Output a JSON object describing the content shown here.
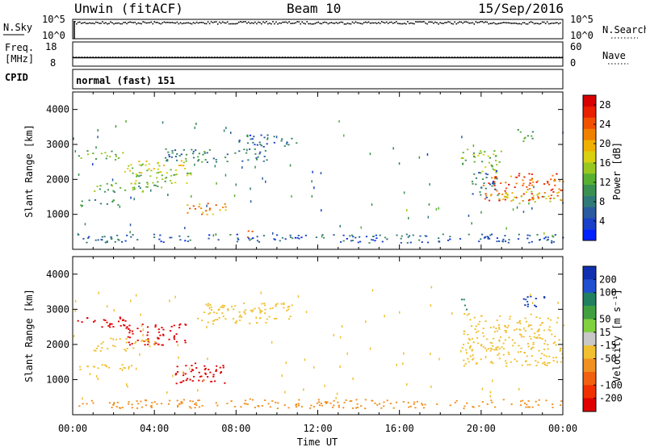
{
  "header": {
    "title": "Unwin (fitACF)",
    "beam": "Beam 10",
    "date": "15/Sep/2016"
  },
  "top_panels": {
    "nsky_label": "N.Sky",
    "nsearch_label": "N.Search",
    "nsky_ticks": [
      "10^5",
      "10^0"
    ],
    "nsearch_ticks": [
      "10^5",
      "10^0"
    ],
    "freq_label_1": "Freq.",
    "freq_label_2": "[MHz]",
    "freq_ticks": [
      "18",
      "8"
    ],
    "nave_label": "Nave",
    "nave_ticks": [
      "60",
      "0"
    ],
    "cpid_label": "CPID",
    "cpid_value": "normal (fast) 151",
    "freq_level_mhz": 11.5,
    "nave_level": 22
  },
  "chart_data": [
    {
      "type": "heatmap",
      "name": "power",
      "ylabel": "Slant Range [km]",
      "xlabel": "",
      "ylim": [
        0,
        4500
      ],
      "yticks": [
        "1000",
        "2000",
        "3000",
        "4000"
      ],
      "xlim_hours": [
        0,
        24
      ],
      "colorbar": {
        "label": "Power [dB]",
        "ticks": [
          "4",
          "8",
          "12",
          "16",
          "20",
          "24",
          "28"
        ],
        "range": [
          0,
          30
        ],
        "colors": [
          "#0020ff",
          "#1a3fc8",
          "#2a5aa0",
          "#2f7a78",
          "#3a9050",
          "#58b030",
          "#98c820",
          "#d8d010",
          "#f0b000",
          "#f08000",
          "#f05000",
          "#e82000",
          "#d80000"
        ]
      },
      "regions": [
        {
          "t0": 0.2,
          "t1": 2.5,
          "r0": 2550,
          "r1": 2850,
          "v": 13
        },
        {
          "t0": 0.3,
          "t1": 2.2,
          "r0": 1250,
          "r1": 1450,
          "v": 10
        },
        {
          "t0": 1.0,
          "t1": 4.5,
          "r0": 1650,
          "r1": 1950,
          "v": 12
        },
        {
          "t0": 2.5,
          "t1": 5.5,
          "r0": 2150,
          "r1": 2550,
          "v": 17
        },
        {
          "t0": 3.0,
          "t1": 6.0,
          "r0": 1900,
          "r1": 2250,
          "v": 14
        },
        {
          "t0": 5.5,
          "t1": 7.5,
          "r0": 1000,
          "r1": 1350,
          "v": 21
        },
        {
          "t0": 4.5,
          "t1": 9.5,
          "r0": 2500,
          "r1": 2900,
          "v": 8
        },
        {
          "t0": 8.0,
          "t1": 11.0,
          "r0": 2950,
          "r1": 3300,
          "v": 6
        },
        {
          "t0": 8.5,
          "t1": 8.8,
          "r0": 350,
          "r1": 550,
          "v": 22
        },
        {
          "t0": 19.0,
          "t1": 21.0,
          "r0": 2200,
          "r1": 2900,
          "v": 14
        },
        {
          "t0": 20.0,
          "t1": 24.0,
          "r0": 1400,
          "r1": 2200,
          "v": 24
        },
        {
          "t0": 21.0,
          "t1": 24.0,
          "r0": 1300,
          "r1": 1700,
          "v": 17
        },
        {
          "t0": 19.5,
          "t1": 20.8,
          "r0": 1500,
          "r1": 2300,
          "v": 7
        },
        {
          "t0": 21.5,
          "t1": 22.5,
          "r0": 3100,
          "r1": 3500,
          "v": 12
        },
        {
          "t0": 0.0,
          "t1": 24.0,
          "r0": 200,
          "r1": 450,
          "v": 6
        }
      ]
    },
    {
      "type": "heatmap",
      "name": "velocity",
      "ylabel": "Slant Range [km]",
      "xlabel": "Time UT",
      "ylim": [
        0,
        4500
      ],
      "yticks": [
        "1000",
        "2000",
        "3000",
        "4000"
      ],
      "xlim_hours": [
        0,
        24
      ],
      "xticks": [
        "00:00",
        "04:00",
        "08:00",
        "12:00",
        "16:00",
        "20:00",
        "00:00"
      ],
      "colorbar": {
        "label": "Velocity [m s⁻¹]",
        "ticks": [
          "200",
          "100",
          "50",
          "15",
          "-15",
          "-50",
          "-100",
          "-200"
        ],
        "colors": [
          "#1030b0",
          "#2050d0",
          "#208060",
          "#40a040",
          "#80d040",
          "#c8c8c8",
          "#f0c030",
          "#f09020",
          "#f06010",
          "#f03000",
          "#e00000"
        ]
      },
      "regions": [
        {
          "t0": 0.1,
          "t1": 2.6,
          "r0": 2500,
          "r1": 2800,
          "v": -200
        },
        {
          "t0": 2.5,
          "t1": 5.5,
          "r0": 2000,
          "r1": 2600,
          "v": -200
        },
        {
          "t0": 5.0,
          "t1": 7.5,
          "r0": 900,
          "r1": 1500,
          "v": -200
        },
        {
          "t0": 0.3,
          "t1": 3.0,
          "r0": 1300,
          "r1": 1500,
          "v": 0
        },
        {
          "t0": 1.0,
          "t1": 4.0,
          "r0": 1800,
          "r1": 2200,
          "v": 0
        },
        {
          "t0": 6.0,
          "t1": 10.8,
          "r0": 2600,
          "r1": 3200,
          "v": 0
        },
        {
          "t0": 8.5,
          "t1": 8.8,
          "r0": 380,
          "r1": 560,
          "v": -60
        },
        {
          "t0": 19.0,
          "t1": 24.0,
          "r0": 1400,
          "r1": 2900,
          "v": 0
        },
        {
          "t0": 19.0,
          "t1": 19.4,
          "r0": 2800,
          "r1": 3300,
          "v": 120
        },
        {
          "t0": 21.8,
          "t1": 23.2,
          "r0": 3100,
          "r1": 3400,
          "v": 200
        },
        {
          "t0": 0.0,
          "t1": 24.0,
          "r0": 200,
          "r1": 450,
          "v": -30
        }
      ]
    }
  ]
}
